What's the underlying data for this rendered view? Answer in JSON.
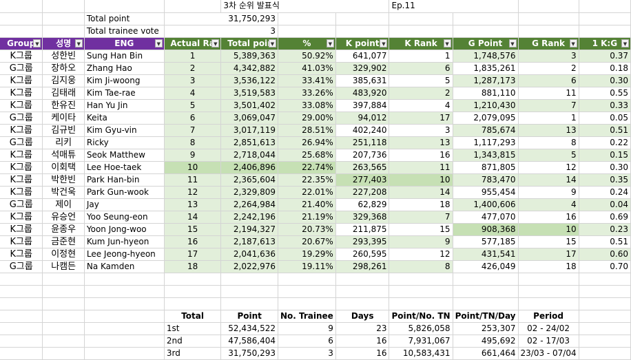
{
  "top": {
    "title": "3차 순위 발표식",
    "episode": "Ep.11",
    "total_point_label": "Total point",
    "total_point_value": "31,750,293",
    "total_vote_label": "Total trainee vote",
    "total_vote_value": "3"
  },
  "headers": [
    "Group",
    "성명",
    "ENG",
    "Actual Ra",
    "Total poir",
    "%",
    "K point",
    "K Rank",
    "G Point",
    "G Rank",
    "1 K:G"
  ],
  "rows": [
    {
      "group": "K그룹",
      "name": "성한빈",
      "eng": "Sung Han Bin",
      "rank": "1",
      "total": "5,389,363",
      "pct": "50.92%",
      "kp": "641,077",
      "kr": "1",
      "gp": "1,748,576",
      "gr": "3",
      "ratio": "0.37"
    },
    {
      "group": "G그룹",
      "name": "장하오",
      "eng": "Zhang Hao",
      "rank": "2",
      "total": "4,342,882",
      "pct": "41.03%",
      "kp": "329,902",
      "kr": "6",
      "gp": "1,835,261",
      "gr": "2",
      "ratio": "0.18"
    },
    {
      "group": "K그룹",
      "name": "김지웅",
      "eng": "Kim Ji-woong",
      "rank": "3",
      "total": "3,536,122",
      "pct": "33.41%",
      "kp": "385,631",
      "kr": "5",
      "gp": "1,287,173",
      "gr": "6",
      "ratio": "0.30"
    },
    {
      "group": "K그룹",
      "name": "김태래",
      "eng": "Kim Tae-rae",
      "rank": "4",
      "total": "3,519,583",
      "pct": "33.26%",
      "kp": "483,920",
      "kr": "2",
      "gp": "881,110",
      "gr": "11",
      "ratio": "0.55"
    },
    {
      "group": "K그룹",
      "name": "한유진",
      "eng": "Han Yu Jin",
      "rank": "5",
      "total": "3,501,402",
      "pct": "33.08%",
      "kp": "397,884",
      "kr": "4",
      "gp": "1,210,430",
      "gr": "7",
      "ratio": "0.33"
    },
    {
      "group": "G그룹",
      "name": "케이타",
      "eng": "Keita",
      "rank": "6",
      "total": "3,069,047",
      "pct": "29.00%",
      "kp": "94,012",
      "kr": "17",
      "gp": "2,079,095",
      "gr": "1",
      "ratio": "0.05"
    },
    {
      "group": "K그룹",
      "name": "김규빈",
      "eng": "Kim Gyu-vin",
      "rank": "7",
      "total": "3,017,119",
      "pct": "28.51%",
      "kp": "402,240",
      "kr": "3",
      "gp": "785,674",
      "gr": "13",
      "ratio": "0.51"
    },
    {
      "group": "G그룹",
      "name": "리키",
      "eng": "Ricky",
      "rank": "8",
      "total": "2,851,613",
      "pct": "26.94%",
      "kp": "251,118",
      "kr": "13",
      "gp": "1,117,293",
      "gr": "8",
      "ratio": "0.22"
    },
    {
      "group": "K그룹",
      "name": "석매튜",
      "eng": "Seok Matthew",
      "rank": "9",
      "total": "2,718,044",
      "pct": "25.68%",
      "kp": "207,736",
      "kr": "16",
      "gp": "1,343,815",
      "gr": "5",
      "ratio": "0.15"
    },
    {
      "group": "K그룹",
      "name": "이회택",
      "eng": "Lee Hoe-taek",
      "rank": "10",
      "total": "2,406,896",
      "pct": "22.74%",
      "kp": "263,565",
      "kr": "11",
      "gp": "871,805",
      "gr": "12",
      "ratio": "0.30"
    },
    {
      "group": "K그룹",
      "name": "박한빈",
      "eng": "Park Han-bin",
      "rank": "11",
      "total": "2,365,604",
      "pct": "22.35%",
      "kp": "277,403",
      "kr": "10",
      "gp": "783,470",
      "gr": "14",
      "ratio": "0.35"
    },
    {
      "group": "K그룹",
      "name": "박건욱",
      "eng": "Park Gun-wook",
      "rank": "12",
      "total": "2,329,809",
      "pct": "22.01%",
      "kp": "227,208",
      "kr": "14",
      "gp": "955,454",
      "gr": "9",
      "ratio": "0.24"
    },
    {
      "group": "G그룹",
      "name": "제이",
      "eng": "Jay",
      "rank": "13",
      "total": "2,264,984",
      "pct": "21.40%",
      "kp": "62,829",
      "kr": "18",
      "gp": "1,400,606",
      "gr": "4",
      "ratio": "0.04"
    },
    {
      "group": "K그룹",
      "name": "유승언",
      "eng": "Yoo Seung-eon",
      "rank": "14",
      "total": "2,242,196",
      "pct": "21.19%",
      "kp": "329,368",
      "kr": "7",
      "gp": "477,070",
      "gr": "16",
      "ratio": "0.69"
    },
    {
      "group": "K그룹",
      "name": "윤종우",
      "eng": "Yoon Jong-woo",
      "rank": "15",
      "total": "2,194,327",
      "pct": "20.73%",
      "kp": "211,875",
      "kr": "15",
      "gp": "908,368",
      "gr": "10",
      "ratio": "0.23"
    },
    {
      "group": "K그룹",
      "name": "금준현",
      "eng": "Kum Jun-hyeon",
      "rank": "16",
      "total": "2,187,613",
      "pct": "20.67%",
      "kp": "293,395",
      "kr": "9",
      "gp": "577,185",
      "gr": "15",
      "ratio": "0.51"
    },
    {
      "group": "K그룹",
      "name": "이정현",
      "eng": "Lee Jeong-hyeon",
      "rank": "17",
      "total": "2,041,636",
      "pct": "19.29%",
      "kp": "260,595",
      "kr": "12",
      "gp": "431,541",
      "gr": "17",
      "ratio": "0.60"
    },
    {
      "group": "G그룹",
      "name": "나캠든",
      "eng": "Na Kamden",
      "rank": "18",
      "total": "2,022,976",
      "pct": "19.11%",
      "kp": "298,261",
      "kr": "8",
      "gp": "426,049",
      "gr": "18",
      "ratio": "0.70"
    }
  ],
  "summary": {
    "headers": [
      "Total",
      "Point",
      "No. Trainee",
      "Days",
      "Point/No. TN",
      "Point/TN/Day",
      "Period"
    ],
    "rows": [
      {
        "label": "1st",
        "point": "52,434,522",
        "trainee": "9",
        "days": "23",
        "ptn": "5,826,058",
        "ptnd": "253,307",
        "period": "02 - 24/02"
      },
      {
        "label": "2nd",
        "point": "47,586,404",
        "trainee": "6",
        "days": "16",
        "ptn": "7,931,067",
        "ptnd": "495,692",
        "period": "02 - 17/03"
      },
      {
        "label": "3rd",
        "point": "31,750,293",
        "trainee": "3",
        "days": "16",
        "ptn": "10,583,431",
        "ptnd": "661,464",
        "period": "23/03 - 07/04"
      }
    ]
  }
}
